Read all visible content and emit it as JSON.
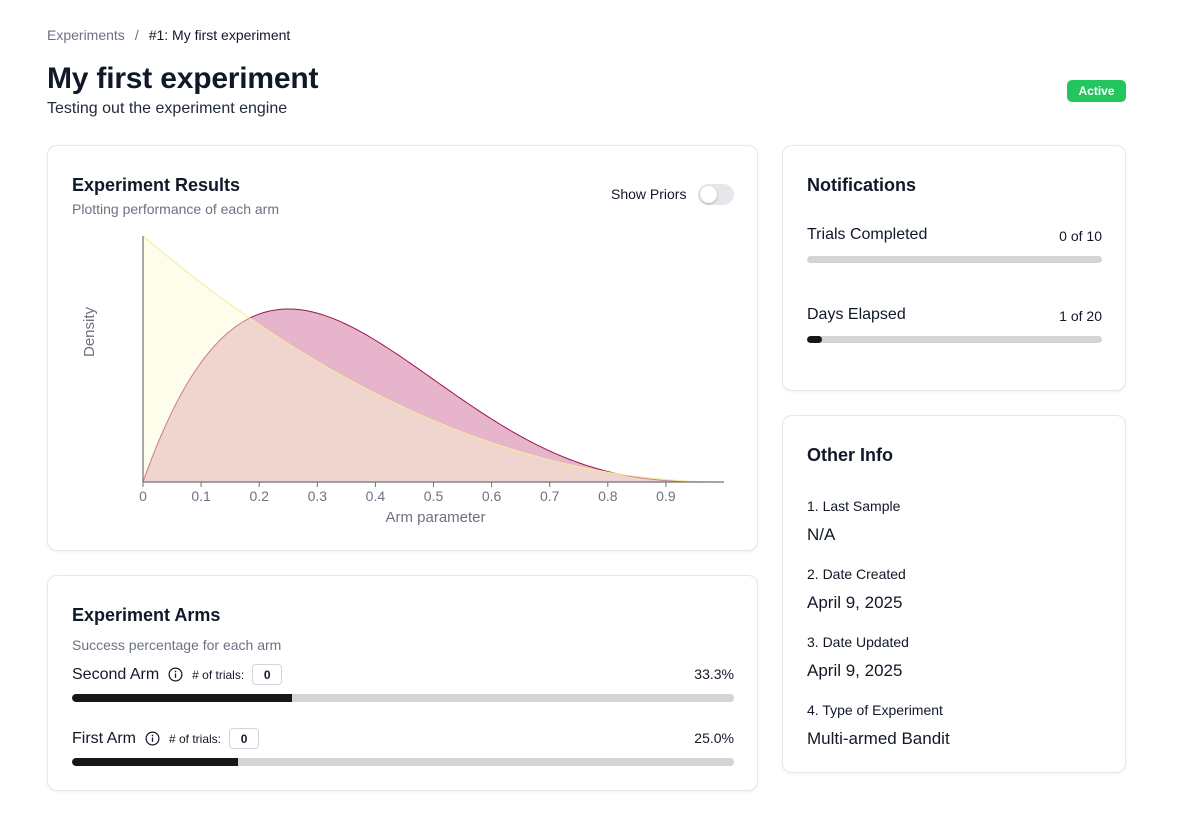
{
  "breadcrumb": {
    "parent": "Experiments",
    "separator": "/",
    "current": "#1: My first experiment"
  },
  "page": {
    "title": "My first experiment",
    "subtitle": "Testing out the experiment engine",
    "status": "Active",
    "status_color": "#22c55e"
  },
  "results": {
    "title": "Experiment Results",
    "subtitle": "Plotting performance of each arm",
    "toggle_label": "Show Priors",
    "toggle_on": false
  },
  "chart_data": {
    "type": "area",
    "xlabel": "Arm parameter",
    "ylabel": "Density",
    "xlim": [
      0,
      1
    ],
    "x_ticks": [
      "0",
      "0.1",
      "0.2",
      "0.3",
      "0.4",
      "0.5",
      "0.6",
      "0.7",
      "0.8",
      "0.9"
    ],
    "series": [
      {
        "distribution": "Beta(2, 4)",
        "alpha": 2,
        "beta": 4,
        "fill": "#d98caf",
        "stroke": "#9d174d"
      },
      {
        "distribution": "Beta(1, 3)",
        "alpha": 1,
        "beta": 3,
        "fill": "#fdfbd2",
        "stroke": "#f5ec95"
      }
    ]
  },
  "arms": {
    "title": "Experiment Arms",
    "subtitle": "Success percentage for each arm",
    "trials_label": "# of trials:",
    "items": [
      {
        "name": "Second Arm",
        "trials": "0",
        "percent_text": "33.3%",
        "fraction": 0.333
      },
      {
        "name": "First Arm",
        "trials": "0",
        "percent_text": "25.0%",
        "fraction": 0.25
      }
    ]
  },
  "notifications": {
    "title": "Notifications",
    "items": [
      {
        "label": "Trials Completed",
        "value": "0 of 10",
        "fraction": 0.0
      },
      {
        "label": "Days Elapsed",
        "value": "1 of 20",
        "fraction": 0.05
      }
    ]
  },
  "other_info": {
    "title": "Other Info",
    "items": [
      {
        "label": "1. Last Sample",
        "value": "N/A"
      },
      {
        "label": "2. Date Created",
        "value": "April 9, 2025"
      },
      {
        "label": "3. Date Updated",
        "value": "April 9, 2025"
      },
      {
        "label": "4. Type of Experiment",
        "value": "Multi-armed Bandit"
      }
    ]
  }
}
